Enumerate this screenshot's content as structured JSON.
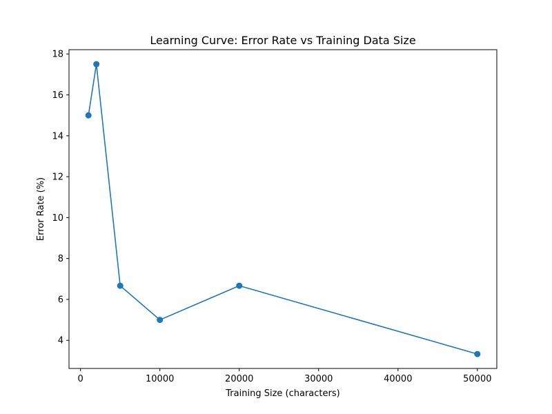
{
  "chart_data": {
    "type": "line",
    "title": "Learning Curve: Error Rate vs Training Data Size",
    "xlabel": "Training Size (characters)",
    "ylabel": "Error Rate (%)",
    "x": [
      1000,
      2000,
      5000,
      10000,
      20000,
      50000
    ],
    "series": [
      {
        "values": [
          15.0,
          17.5,
          6.67,
          5.0,
          6.67,
          3.33
        ]
      }
    ],
    "xlim": [
      -1450,
      52450
    ],
    "ylim": [
      2.625,
      18.21
    ],
    "xticks": [
      0,
      10000,
      20000,
      30000,
      40000,
      50000
    ],
    "xtick_labels": [
      "0",
      "10000",
      "20000",
      "30000",
      "40000",
      "50000"
    ],
    "yticks": [
      4,
      6,
      8,
      10,
      12,
      14,
      16,
      18
    ],
    "ytick_labels": [
      "4",
      "6",
      "8",
      "10",
      "12",
      "14",
      "16",
      "18"
    ],
    "grid": false,
    "line_color": "#1f77b4",
    "marker": "circle"
  }
}
